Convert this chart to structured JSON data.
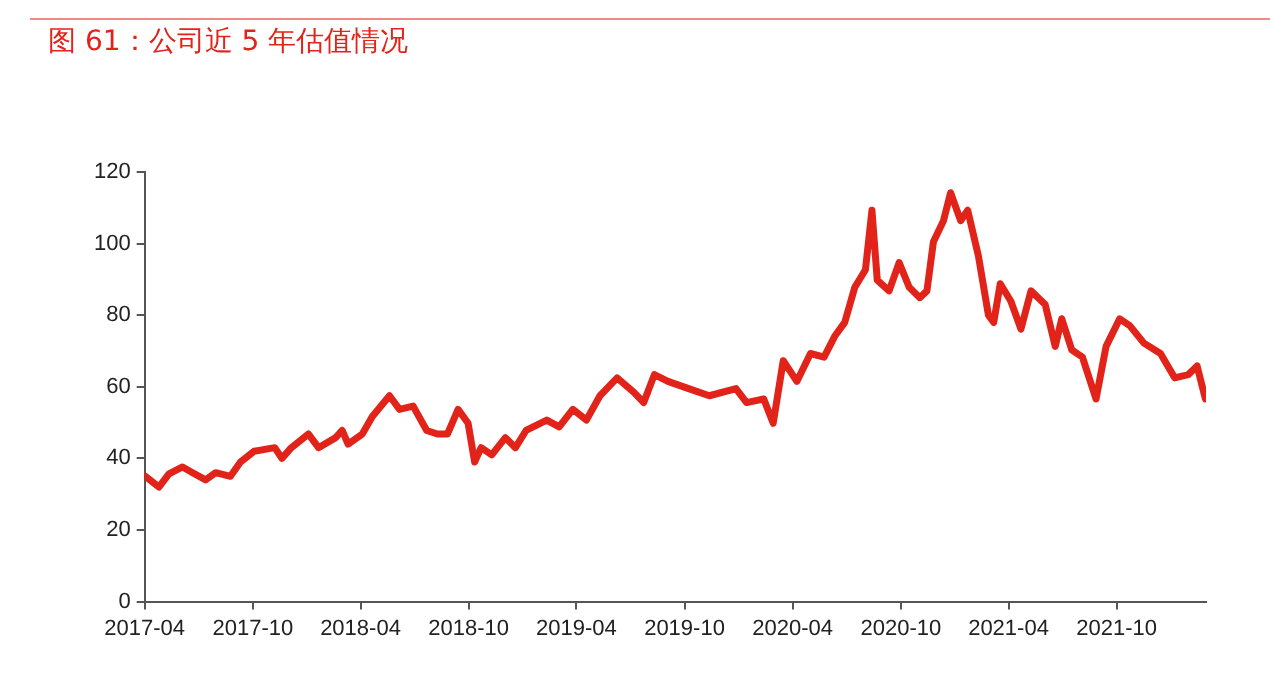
{
  "chart_data": {
    "type": "line",
    "title": "图 61：公司近 5 年估值情况",
    "x": [
      "2017-04-02",
      "2017-04-25",
      "2017-05-12",
      "2017-06-04",
      "2017-06-21",
      "2017-07-13",
      "2017-07-30",
      "2017-08-24",
      "2017-09-10",
      "2017-10-03",
      "2017-11-07",
      "2017-11-19",
      "2017-12-05",
      "2018-01-03",
      "2018-01-20",
      "2018-02-18",
      "2018-03-01",
      "2018-03-11",
      "2018-04-04",
      "2018-04-21",
      "2018-05-20",
      "2018-06-06",
      "2018-06-29",
      "2018-07-22",
      "2018-08-09",
      "2018-08-26",
      "2018-09-13",
      "2018-09-30",
      "2018-10-11",
      "2018-10-22",
      "2018-11-09",
      "2018-12-02",
      "2018-12-19",
      "2019-01-06",
      "2019-02-10",
      "2019-03-03",
      "2019-03-26",
      "2019-04-18",
      "2019-05-11",
      "2019-06-09",
      "2019-07-07",
      "2019-07-24",
      "2019-08-11",
      "2019-09-03",
      "2019-10-08",
      "2019-11-12",
      "2019-12-27",
      "2020-01-14",
      "2020-02-12",
      "2020-02-28",
      "2020-03-16",
      "2020-04-08",
      "2020-05-01",
      "2020-05-24",
      "2020-06-11",
      "2020-06-28",
      "2020-07-15",
      "2020-08-02",
      "2020-08-13",
      "2020-08-22",
      "2020-09-11",
      "2020-09-28",
      "2020-10-15",
      "2020-11-02",
      "2020-11-14",
      "2020-11-25",
      "2020-12-12",
      "2020-12-24",
      "2021-01-10",
      "2021-01-22",
      "2021-02-09",
      "2021-02-26",
      "2021-03-07",
      "2021-03-18",
      "2021-04-05",
      "2021-04-22",
      "2021-05-09",
      "2021-06-02",
      "2021-06-19",
      "2021-06-30",
      "2021-07-17",
      "2021-08-04",
      "2021-08-27",
      "2021-09-13",
      "2021-10-06",
      "2021-10-23",
      "2021-11-16",
      "2021-12-14",
      "2022-01-07",
      "2022-01-30",
      "2022-02-14",
      "2022-02-28"
    ],
    "series": [
      {
        "color": "#e2231a",
        "values": [
          35,
          32,
          35.7,
          37.6,
          36,
          34,
          36,
          35,
          39,
          42,
          43,
          40,
          43,
          46.8,
          43,
          45.8,
          47.8,
          44,
          46.8,
          51.7,
          57.5,
          53.7,
          54.6,
          47.8,
          46.8,
          46.8,
          53.7,
          49.8,
          39,
          43,
          41,
          45.8,
          43,
          47.8,
          50.7,
          48.8,
          53.7,
          50.7,
          57.5,
          62.5,
          58.5,
          55.6,
          63.4,
          61.5,
          59.5,
          57.5,
          59.5,
          55.6,
          56.6,
          49.8,
          67.3,
          61.5,
          69.3,
          68.3,
          74.1,
          78,
          87.8,
          92.7,
          109.3,
          89.8,
          86.8,
          94.7,
          87.8,
          84.9,
          86.8,
          100.5,
          106.4,
          114.2,
          106.4,
          109.3,
          96.6,
          80,
          78,
          88.8,
          83.9,
          76.1,
          86.8,
          83,
          71.3,
          79,
          70.3,
          68.3,
          56.6,
          71.3,
          79,
          77.1,
          72.2,
          69.3,
          62.5,
          63.4,
          65.8,
          56.6
        ]
      }
    ],
    "xlim": [
      "2017-04-01",
      "2022-03-01"
    ],
    "xticks": [
      "2017-04",
      "2017-10",
      "2018-04",
      "2018-10",
      "2019-04",
      "2019-10",
      "2020-04",
      "2020-10",
      "2021-04",
      "2021-10"
    ],
    "ylim": [
      0,
      120
    ],
    "yticks": [
      0,
      20,
      40,
      60,
      80,
      100,
      120
    ],
    "grid": false,
    "legend": false,
    "marker": "none",
    "line_style": "solid"
  }
}
